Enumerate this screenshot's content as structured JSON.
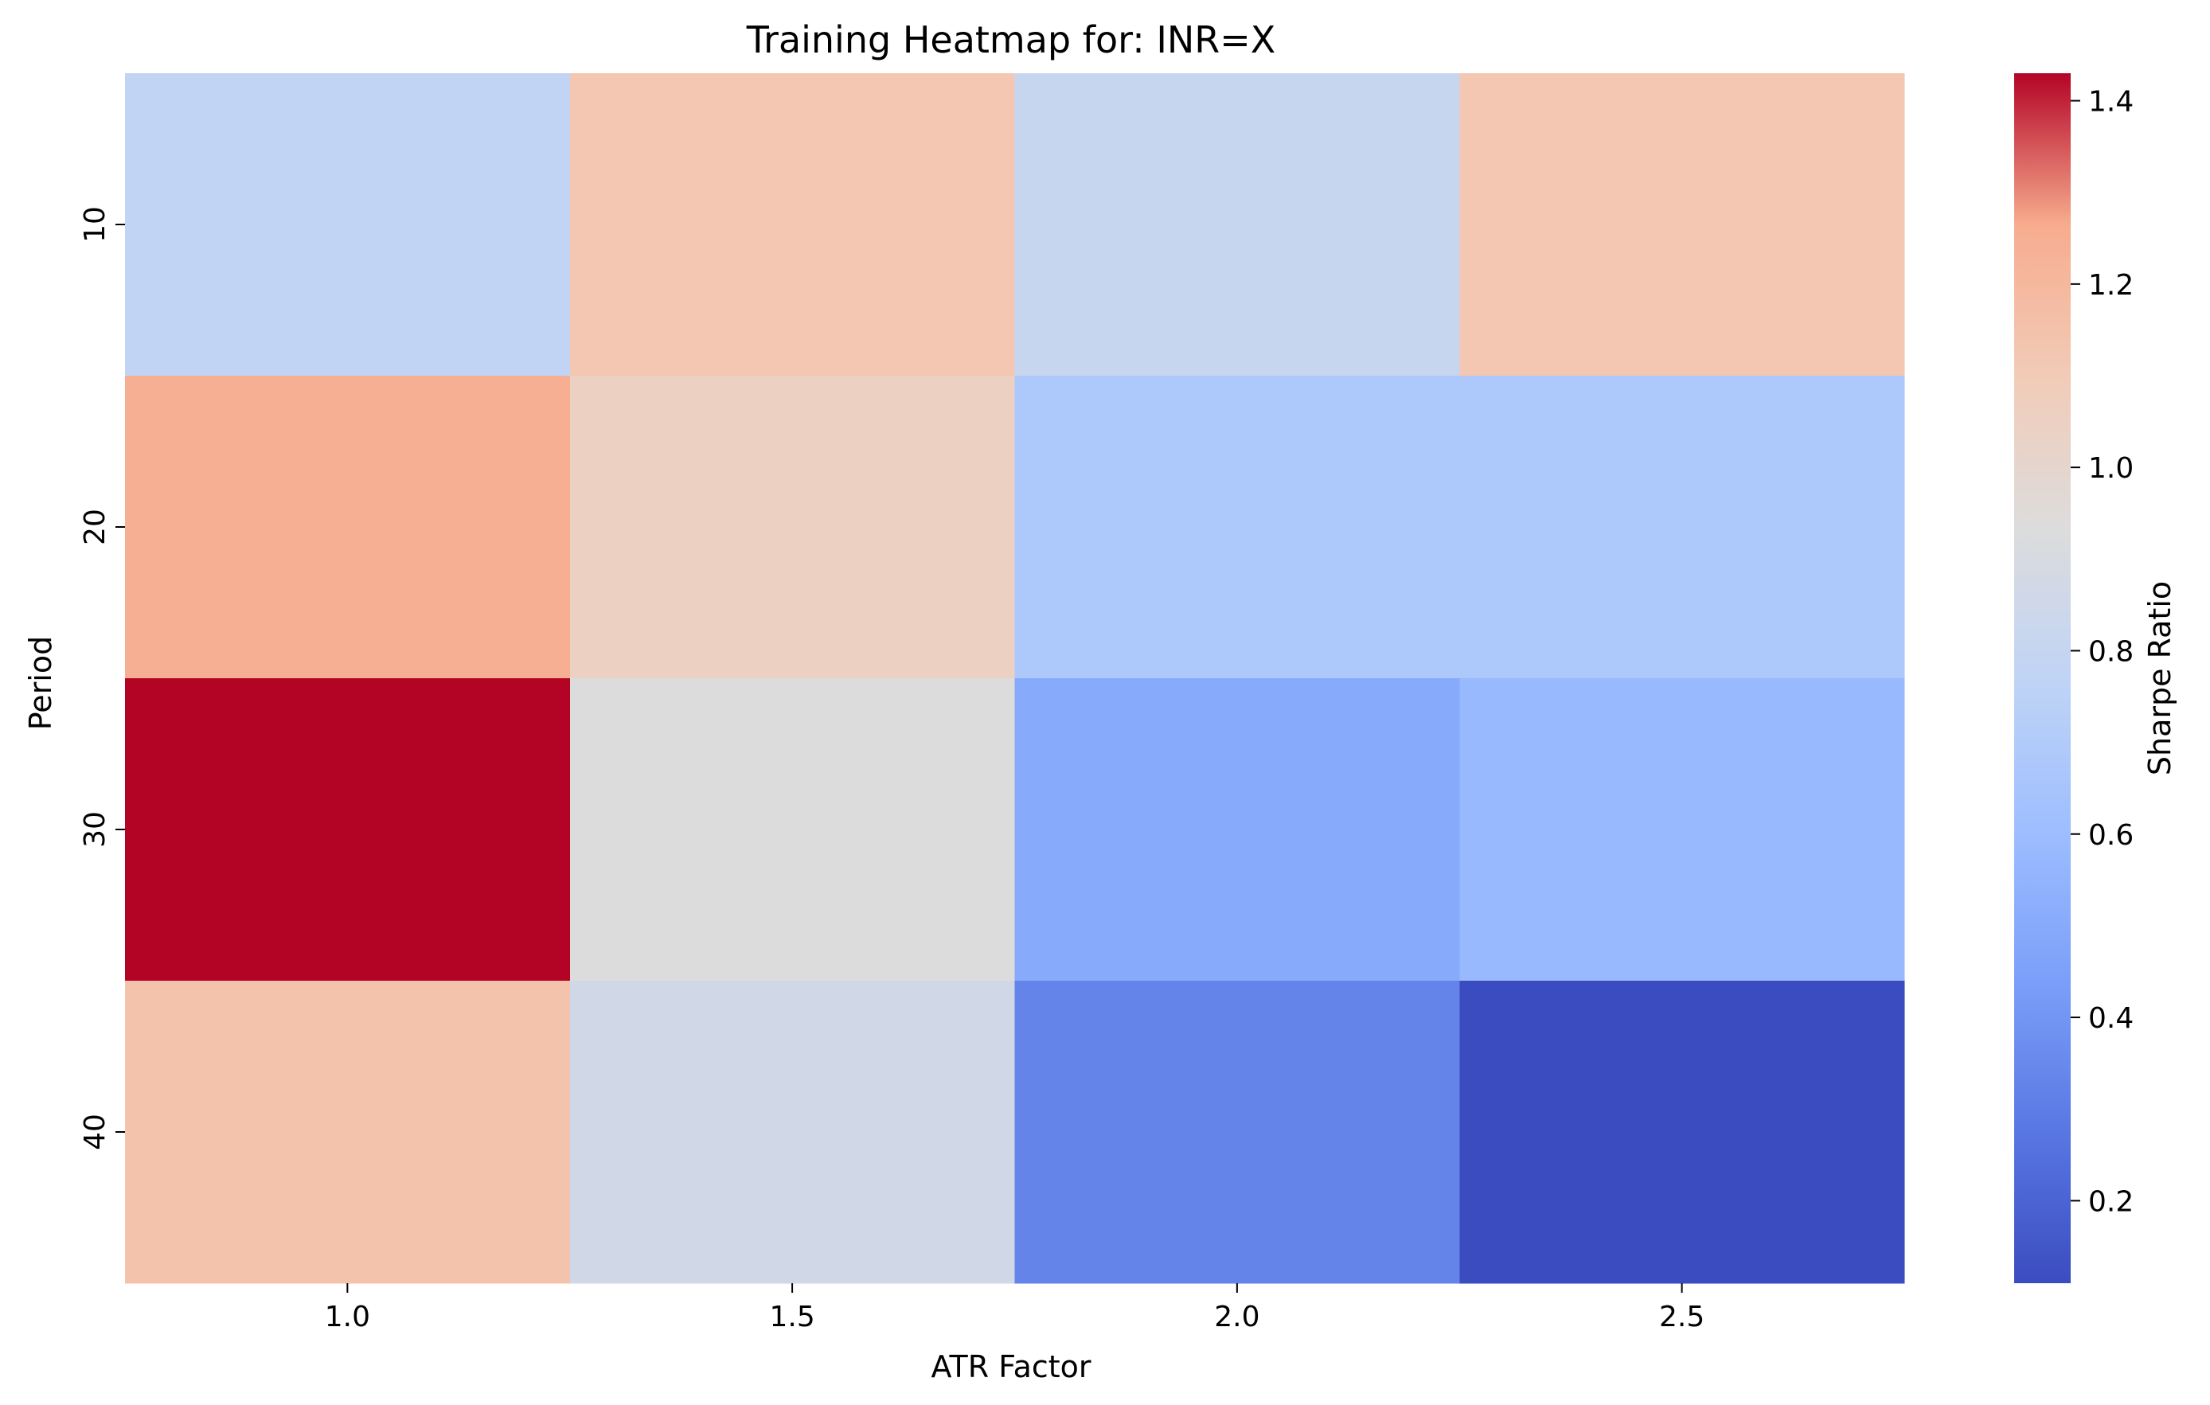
{
  "chart_data": {
    "type": "heatmap",
    "title": "Training Heatmap for: INR=X",
    "xlabel": "ATR Factor",
    "ylabel": "Period",
    "x_categories": [
      "1.0",
      "1.5",
      "2.0",
      "2.5"
    ],
    "y_categories": [
      "10",
      "20",
      "30",
      "40"
    ],
    "values": [
      [
        0.78,
        1.12,
        0.81,
        1.12
      ],
      [
        1.23,
        1.05,
        0.68,
        0.68
      ],
      [
        1.43,
        0.93,
        0.5,
        0.58
      ],
      [
        1.14,
        0.86,
        0.33,
        0.11
      ]
    ],
    "colorbar": {
      "label": "Sharpe Ratio",
      "range": [
        0.11,
        1.43
      ],
      "ticks": [
        "0.2",
        "0.4",
        "0.6",
        "0.8",
        "1.0",
        "1.2",
        "1.4"
      ],
      "colormap": "coolwarm"
    },
    "grid": false
  }
}
